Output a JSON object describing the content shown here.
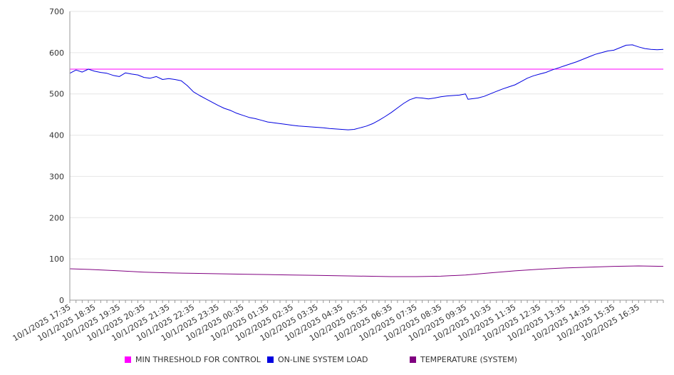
{
  "chart_data": {
    "type": "line",
    "title": "",
    "xlabel": "",
    "ylabel": "",
    "ylim": [
      0,
      700
    ],
    "yticks": [
      0,
      100,
      200,
      300,
      400,
      500,
      600,
      700
    ],
    "x_tick_labels": [
      "10/1/2025 17:35",
      "10/1/2025 18:35",
      "10/1/2025 19:35",
      "10/1/2025 20:35",
      "10/1/2025 21:35",
      "10/1/2025 22:35",
      "10/1/2025 23:35",
      "10/2/2025 00:35",
      "10/2/2025 01:35",
      "10/2/2025 02:35",
      "10/2/2025 03:35",
      "10/2/2025 04:35",
      "10/2/2025 05:35",
      "10/2/2025 06:35",
      "10/2/2025 07:35",
      "10/2/2025 08:35",
      "10/2/2025 09:35",
      "10/2/2025 10:35",
      "10/2/2025 11:35",
      "10/2/2025 12:35",
      "10/2/2025 13:35",
      "10/2/2025 14:35",
      "10/2/2025 15:35",
      "10/2/2025 16:35"
    ],
    "x_start": "10/1/2025 17:35",
    "x_end": "10/2/2025 17:35",
    "grid": true,
    "legend_position": "bottom",
    "series": [
      {
        "name": "MIN THRESHOLD FOR CONTROL",
        "color": "#ff00ff",
        "constant": 560
      },
      {
        "name": "ON-LINE SYSTEM LOAD",
        "color": "#0000e0",
        "points": [
          [
            0,
            550
          ],
          [
            0.25,
            558
          ],
          [
            0.5,
            553
          ],
          [
            0.75,
            560
          ],
          [
            1,
            555
          ],
          [
            1.25,
            552
          ],
          [
            1.5,
            550
          ],
          [
            1.75,
            545
          ],
          [
            2,
            542
          ],
          [
            2.25,
            551
          ],
          [
            2.5,
            548
          ],
          [
            2.75,
            546
          ],
          [
            3,
            540
          ],
          [
            3.25,
            538
          ],
          [
            3.5,
            542
          ],
          [
            3.75,
            535
          ],
          [
            4,
            537
          ],
          [
            4.25,
            535
          ],
          [
            4.5,
            532
          ],
          [
            4.75,
            520
          ],
          [
            5,
            505
          ],
          [
            5.25,
            496
          ],
          [
            5.5,
            488
          ],
          [
            5.75,
            480
          ],
          [
            6,
            472
          ],
          [
            6.25,
            465
          ],
          [
            6.5,
            460
          ],
          [
            6.75,
            453
          ],
          [
            7,
            448
          ],
          [
            7.25,
            443
          ],
          [
            7.5,
            440
          ],
          [
            7.75,
            436
          ],
          [
            8,
            432
          ],
          [
            8.25,
            430
          ],
          [
            8.5,
            428
          ],
          [
            8.75,
            426
          ],
          [
            9,
            424
          ],
          [
            9.25,
            422
          ],
          [
            9.5,
            421
          ],
          [
            9.75,
            420
          ],
          [
            10,
            419
          ],
          [
            10.25,
            418
          ],
          [
            10.5,
            416
          ],
          [
            10.75,
            415
          ],
          [
            11,
            414
          ],
          [
            11.25,
            413
          ],
          [
            11.5,
            414
          ],
          [
            11.75,
            418
          ],
          [
            12,
            422
          ],
          [
            12.25,
            428
          ],
          [
            12.5,
            436
          ],
          [
            12.75,
            445
          ],
          [
            13,
            455
          ],
          [
            13.25,
            466
          ],
          [
            13.5,
            477
          ],
          [
            13.75,
            486
          ],
          [
            14,
            491
          ],
          [
            14.25,
            490
          ],
          [
            14.5,
            488
          ],
          [
            14.75,
            490
          ],
          [
            15,
            493
          ],
          [
            15.25,
            495
          ],
          [
            15.5,
            496
          ],
          [
            15.75,
            497
          ],
          [
            16,
            500
          ],
          [
            16.1,
            487
          ],
          [
            16.5,
            490
          ],
          [
            16.75,
            494
          ],
          [
            17,
            500
          ],
          [
            17.25,
            506
          ],
          [
            17.5,
            512
          ],
          [
            17.75,
            517
          ],
          [
            18,
            522
          ],
          [
            18.25,
            530
          ],
          [
            18.5,
            538
          ],
          [
            18.75,
            544
          ],
          [
            19,
            548
          ],
          [
            19.25,
            552
          ],
          [
            19.5,
            558
          ],
          [
            19.75,
            563
          ],
          [
            20,
            568
          ],
          [
            20.25,
            573
          ],
          [
            20.5,
            578
          ],
          [
            20.75,
            584
          ],
          [
            21,
            590
          ],
          [
            21.25,
            596
          ],
          [
            21.5,
            600
          ],
          [
            21.75,
            604
          ],
          [
            22,
            606
          ],
          [
            22.25,
            612
          ],
          [
            22.5,
            618
          ],
          [
            22.75,
            619
          ],
          [
            23,
            614
          ],
          [
            23.25,
            610
          ],
          [
            23.5,
            608
          ],
          [
            23.75,
            607
          ],
          [
            24,
            608
          ]
        ]
      },
      {
        "name": "TEMPERATURE (SYSTEM)",
        "color": "#800080",
        "points": [
          [
            0,
            76
          ],
          [
            1,
            74
          ],
          [
            2,
            71
          ],
          [
            3,
            68
          ],
          [
            4,
            66
          ],
          [
            5,
            65
          ],
          [
            6,
            64
          ],
          [
            7,
            63
          ],
          [
            8,
            62
          ],
          [
            9,
            61
          ],
          [
            10,
            60
          ],
          [
            11,
            59
          ],
          [
            12,
            58
          ],
          [
            13,
            57
          ],
          [
            14,
            57
          ],
          [
            15,
            58
          ],
          [
            16,
            61
          ],
          [
            17,
            66
          ],
          [
            18,
            71
          ],
          [
            19,
            75
          ],
          [
            20,
            78
          ],
          [
            21,
            80
          ],
          [
            22,
            82
          ],
          [
            23,
            83
          ],
          [
            24,
            82
          ]
        ]
      }
    ]
  }
}
